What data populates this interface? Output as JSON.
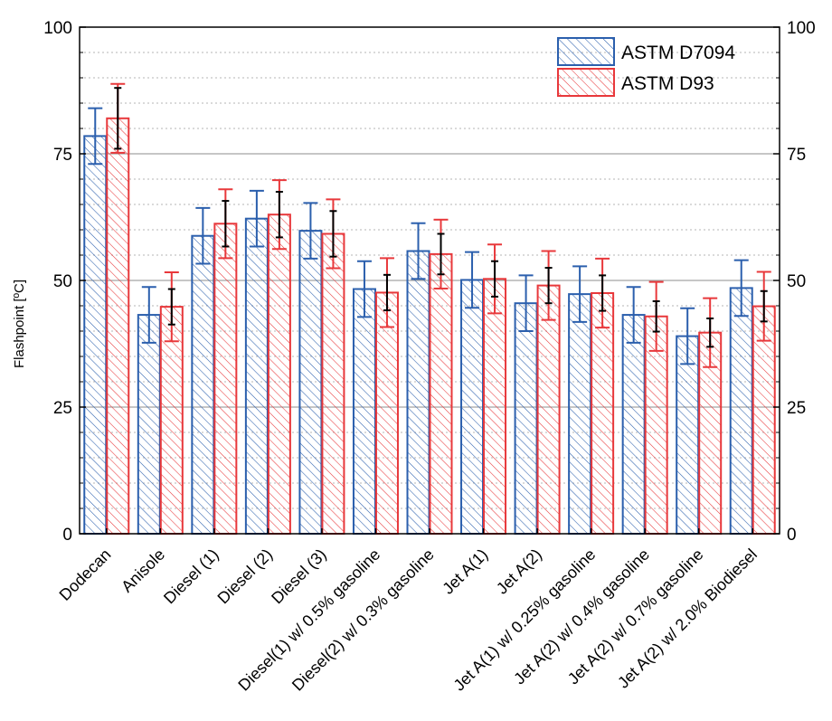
{
  "chart_data": {
    "type": "bar",
    "title": "",
    "xlabel": "",
    "ylabel": "Flashpoint [ºC]",
    "ylim": [
      0,
      100
    ],
    "yticks": [
      0,
      25,
      50,
      75,
      100
    ],
    "minor_step": 5,
    "grid": "horizontal",
    "legend_position": "top-right",
    "categories": [
      "Dodecan",
      "Anisole",
      "Diesel (1)",
      "Diesel (2)",
      "Diesel (3)",
      "Diesel(1) w/ 0.5% gasoline",
      "Diesel(2) w/ 0.3% gasoline",
      "Jet A(1)",
      "Jet A(2)",
      "Jet A(1) w/ 0.25% gasoline",
      "Jet A(2) w/ 0.4% gasoline",
      "Jet A(2) w/ 0.7% gasoline",
      "Jet A(2) w/ 2.0% Biodiesel"
    ],
    "series": [
      {
        "name": "ASTM D7094",
        "color": "#2b5fad",
        "values": [
          78.5,
          43.2,
          58.8,
          62.2,
          59.8,
          48.3,
          55.8,
          50.1,
          45.5,
          47.3,
          43.2,
          39.0,
          48.5
        ],
        "err_outer": [
          5.5,
          5.5,
          5.5,
          5.5,
          5.5,
          5.5,
          5.5,
          5.5,
          5.5,
          5.5,
          5.5,
          5.5,
          5.5
        ],
        "err_inner": null
      },
      {
        "name": "ASTM D93",
        "color": "#e8383b",
        "values": [
          82.0,
          44.8,
          61.2,
          63.0,
          59.2,
          47.6,
          55.2,
          50.3,
          49.0,
          47.5,
          42.9,
          39.7,
          44.9
        ],
        "err_outer": [
          6.8,
          6.8,
          6.8,
          6.8,
          6.8,
          6.8,
          6.8,
          6.8,
          6.8,
          6.8,
          6.8,
          6.8,
          6.8
        ],
        "err_inner": [
          6.0,
          3.5,
          4.5,
          4.5,
          4.5,
          3.5,
          4.0,
          3.5,
          3.5,
          3.5,
          3.0,
          2.8,
          3.0
        ]
      }
    ]
  }
}
